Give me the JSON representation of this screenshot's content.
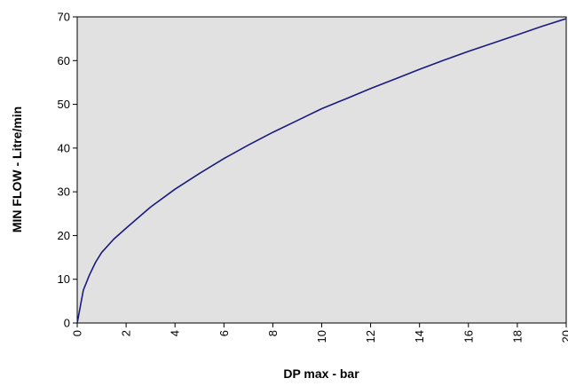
{
  "chart_data": {
    "type": "line",
    "title": "",
    "xlabel": "DP max - bar",
    "ylabel": "MIN FLOW - Litre/min",
    "xlim": [
      0,
      20
    ],
    "ylim": [
      0,
      70
    ],
    "x_ticks": [
      "0",
      "2",
      "4",
      "6",
      "8",
      "10",
      "12",
      "14",
      "16",
      "18",
      "20"
    ],
    "y_ticks": [
      "0",
      "10",
      "20",
      "30",
      "40",
      "50",
      "60",
      "70"
    ],
    "grid": false,
    "legend": "none",
    "series": [
      {
        "color": "#1a1a80",
        "x": [
          0,
          0.25,
          0.5,
          0.75,
          1,
          1.5,
          2,
          3,
          4,
          5,
          6,
          7,
          8,
          9,
          10,
          11,
          12,
          13,
          14,
          15,
          16,
          17,
          18,
          19,
          20
        ],
        "values": [
          0,
          7.5,
          11,
          13.9,
          16.1,
          19.2,
          21.7,
          26.5,
          30.6,
          34.2,
          37.6,
          40.7,
          43.6,
          46.3,
          49.0,
          51.3,
          53.6,
          55.8,
          58.0,
          60.1,
          62.1,
          64.0,
          65.9,
          67.8,
          69.6
        ]
      }
    ],
    "colors": {
      "plot_background": "#e1e1e1",
      "line": "#1a1a80",
      "axis": "#000000"
    }
  }
}
